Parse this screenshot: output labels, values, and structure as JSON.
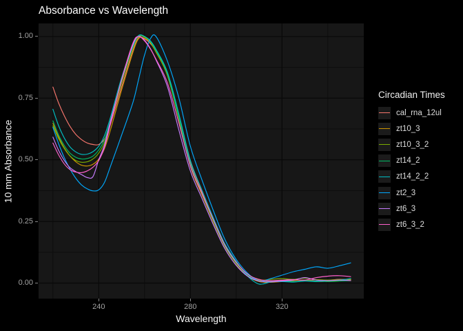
{
  "chart_data": {
    "type": "line",
    "title": "Absorbance vs Wavelength",
    "xlabel": "Wavelength",
    "ylabel": "10 mm Absorbance",
    "legend_title": "Circadian Times",
    "legend_position": "right",
    "grid": "on",
    "xlim": [
      213.75,
      355.7
    ],
    "ylim": [
      -0.063,
      1.053
    ],
    "x_ticks": [
      240,
      280,
      320
    ],
    "x_tick_labels": [
      "240",
      "280",
      "320"
    ],
    "x_minor_ticks": [
      220,
      260,
      300,
      340
    ],
    "y_ticks": [
      0,
      0.25,
      0.5,
      0.75,
      1
    ],
    "y_tick_labels": [
      "0.00",
      "0.25",
      "0.50",
      "0.75",
      "1.00"
    ],
    "y_minor_ticks": [
      0.125,
      0.375,
      0.625,
      0.875
    ],
    "x": [
      220,
      222.5,
      225,
      227.5,
      230,
      232.5,
      235,
      237.5,
      240,
      242.5,
      245,
      250,
      255,
      257.5,
      260,
      262.5,
      265,
      270,
      275,
      280,
      285,
      290,
      295,
      300,
      305,
      310,
      315,
      320,
      325,
      330,
      335,
      340,
      345,
      350
    ],
    "series": [
      {
        "name": "cal_rna_12ul",
        "color": "#F8766D",
        "values": [
          0.795,
          0.73,
          0.678,
          0.635,
          0.603,
          0.582,
          0.568,
          0.562,
          0.562,
          0.585,
          0.64,
          0.795,
          0.945,
          0.995,
          0.99,
          0.972,
          0.94,
          0.845,
          0.67,
          0.49,
          0.372,
          0.26,
          0.155,
          0.085,
          0.035,
          0.015,
          0.008,
          0.01,
          0.012,
          0.01,
          0.013,
          0.012,
          0.015,
          0.014
        ]
      },
      {
        "name": "zt10_3",
        "color": "#CD9600",
        "values": [
          0.648,
          0.592,
          0.548,
          0.515,
          0.492,
          0.478,
          0.475,
          0.482,
          0.503,
          0.545,
          0.617,
          0.783,
          0.938,
          0.992,
          0.993,
          0.975,
          0.937,
          0.842,
          0.662,
          0.472,
          0.358,
          0.248,
          0.148,
          0.078,
          0.028,
          0.006,
          0.003,
          0.006,
          0.01,
          0.012,
          0.006,
          0.008,
          0.01,
          0.012
        ]
      },
      {
        "name": "zt10_3_2",
        "color": "#7CAE00",
        "values": [
          0.638,
          0.585,
          0.545,
          0.515,
          0.497,
          0.49,
          0.492,
          0.503,
          0.527,
          0.57,
          0.645,
          0.81,
          0.955,
          1.0,
          0.997,
          0.978,
          0.94,
          0.845,
          0.665,
          0.478,
          0.362,
          0.252,
          0.15,
          0.08,
          0.032,
          0.012,
          0.015,
          0.018,
          0.015,
          0.02,
          0.014,
          0.012,
          0.014,
          0.016
        ]
      },
      {
        "name": "zt14_2",
        "color": "#00BE67",
        "values": [
          0.658,
          0.6,
          0.557,
          0.527,
          0.51,
          0.503,
          0.505,
          0.515,
          0.54,
          0.582,
          0.655,
          0.82,
          0.96,
          1.003,
          1.0,
          0.98,
          0.943,
          0.848,
          0.67,
          0.482,
          0.365,
          0.255,
          0.152,
          0.082,
          0.033,
          0.01,
          0.006,
          0.008,
          0.006,
          0.009,
          0.008,
          0.006,
          0.008,
          0.01
        ]
      },
      {
        "name": "zt14_2_2",
        "color": "#00BFC4",
        "values": [
          0.705,
          0.638,
          0.588,
          0.552,
          0.532,
          0.522,
          0.523,
          0.533,
          0.555,
          0.598,
          0.668,
          0.833,
          0.965,
          1.005,
          1.0,
          0.983,
          0.948,
          0.855,
          0.685,
          0.498,
          0.378,
          0.265,
          0.16,
          0.088,
          0.028,
          -0.004,
          0.004,
          0.006,
          0.004,
          0.008,
          0.006,
          0.01,
          0.012,
          0.018
        ]
      },
      {
        "name": "zt2_3",
        "color": "#00A9FF",
        "values": [
          0.632,
          0.565,
          0.508,
          0.462,
          0.425,
          0.398,
          0.382,
          0.374,
          0.378,
          0.408,
          0.47,
          0.6,
          0.735,
          0.83,
          0.925,
          0.99,
          1.0,
          0.9,
          0.75,
          0.555,
          0.42,
          0.295,
          0.178,
          0.096,
          0.04,
          0.008,
          0.018,
          0.032,
          0.046,
          0.056,
          0.066,
          0.06,
          0.07,
          0.082
        ]
      },
      {
        "name": "zt6_3",
        "color": "#C77CFF",
        "values": [
          0.592,
          0.538,
          0.497,
          0.468,
          0.452,
          0.44,
          0.428,
          0.432,
          0.5,
          0.56,
          0.652,
          0.822,
          0.968,
          1.0,
          0.985,
          0.952,
          0.905,
          0.797,
          0.62,
          0.455,
          0.345,
          0.238,
          0.14,
          0.072,
          0.028,
          0.008,
          0.005,
          0.008,
          0.012,
          0.022,
          0.012,
          0.01,
          0.012,
          0.01
        ]
      },
      {
        "name": "zt6_3_2",
        "color": "#FF61CC",
        "values": [
          0.568,
          0.52,
          0.483,
          0.46,
          0.45,
          0.448,
          0.455,
          0.47,
          0.497,
          0.55,
          0.64,
          0.825,
          0.975,
          1.0,
          0.982,
          0.95,
          0.908,
          0.812,
          0.648,
          0.475,
          0.365,
          0.258,
          0.155,
          0.085,
          0.036,
          0.014,
          0.01,
          0.012,
          0.014,
          0.012,
          0.022,
          0.028,
          0.03,
          0.026
        ]
      }
    ]
  },
  "theme": {
    "background": "#000000",
    "panel": "#171717",
    "grid_major": "#090909",
    "grid_minor": "#0e0e0e",
    "tick_color": "#888888",
    "tick_label_color": "#a3a3a3",
    "title_color": "#ffffff",
    "axis_title_color": "#f5f5f5",
    "legend_title_color": "#f0f0f0",
    "legend_label_color": "#dedede",
    "legend_key_bg": "#1b1b1b"
  }
}
